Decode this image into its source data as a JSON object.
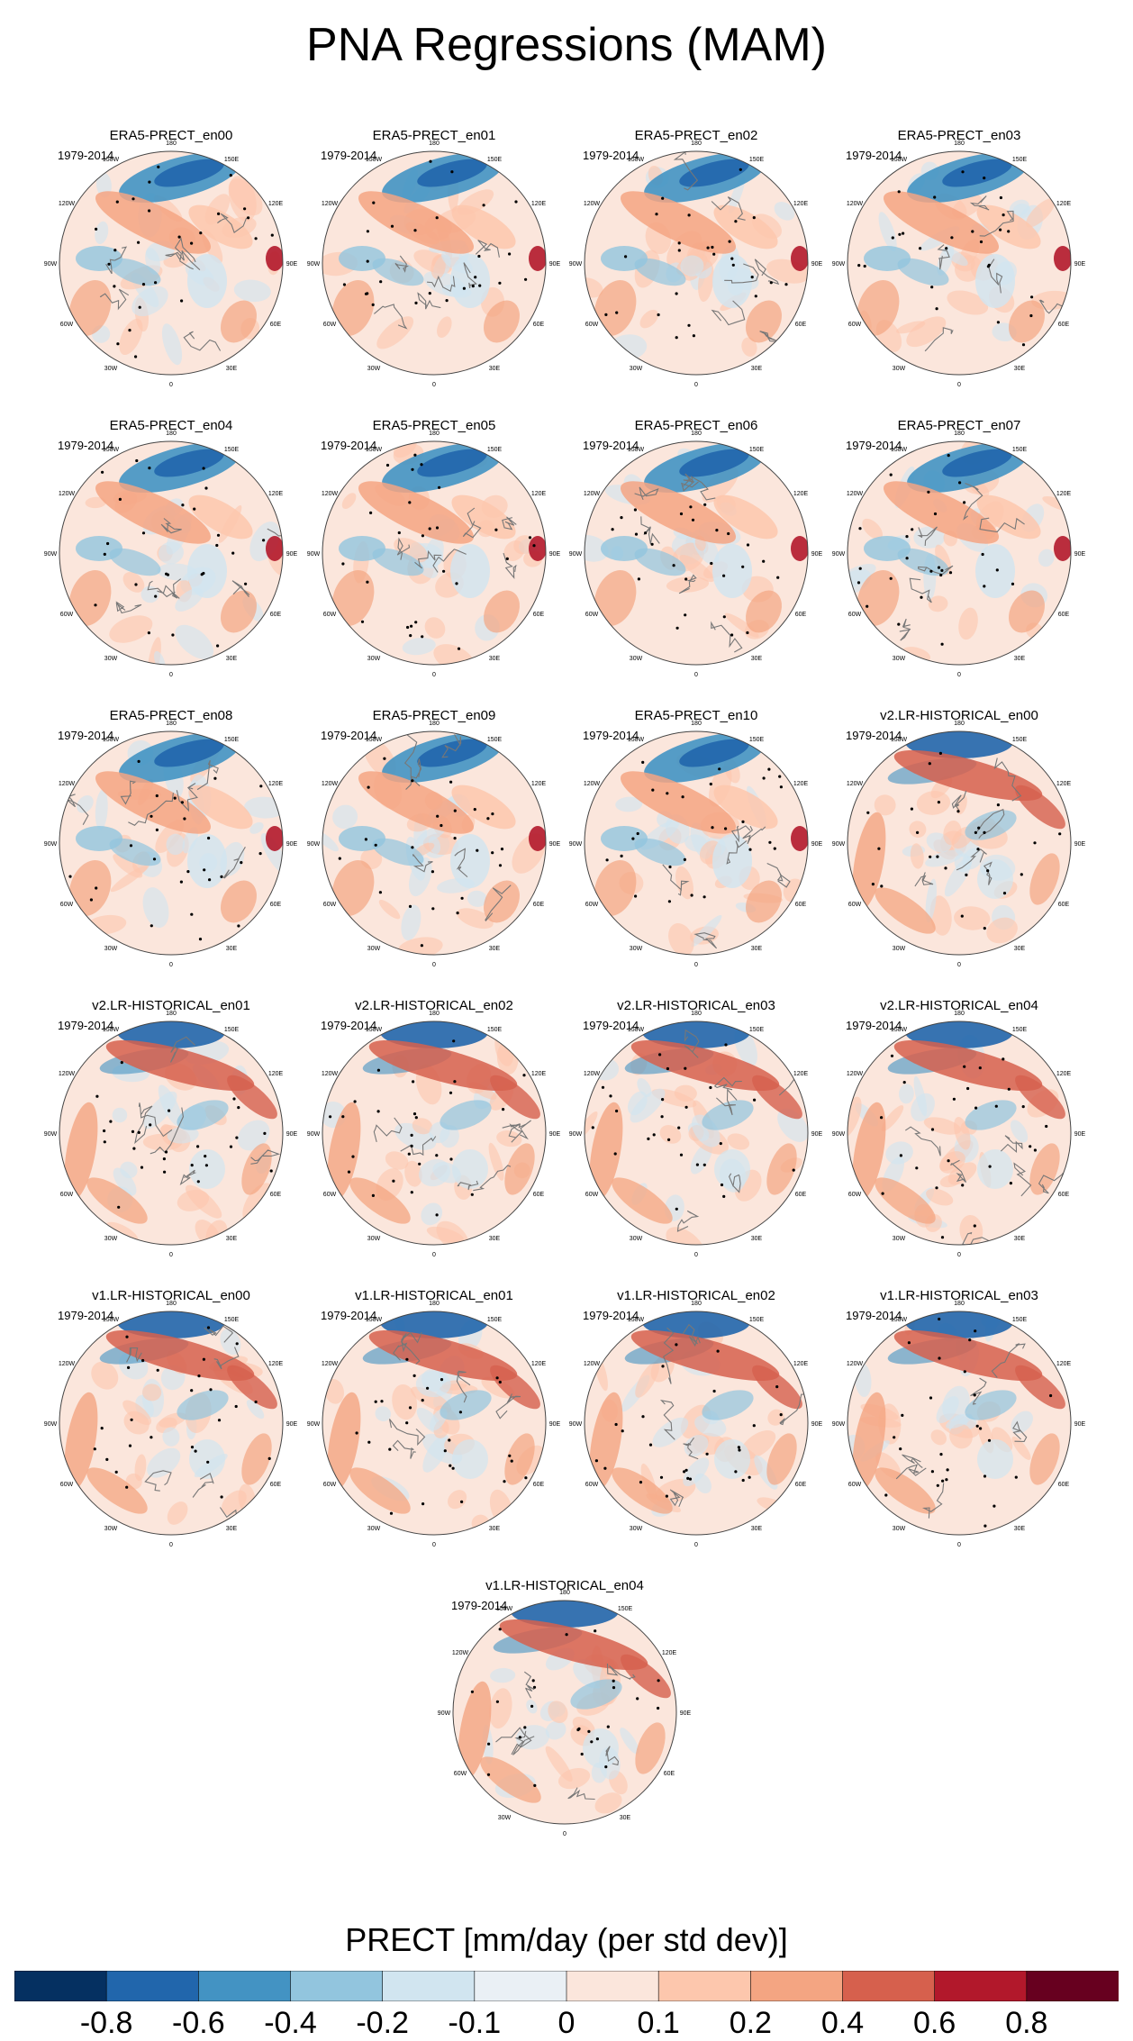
{
  "title": "PNA Regressions (MAM)",
  "chart_data": {
    "type": "heatmap",
    "projection": "north-polar-stereographic",
    "period": "1979-2014",
    "lon_labels": [
      "180",
      "150E",
      "120E",
      "90E",
      "60E",
      "30E",
      "0",
      "30W",
      "60W",
      "90W",
      "120W",
      "150W"
    ],
    "panels": [
      {
        "name": "ERA5-PRECT_en00"
      },
      {
        "name": "ERA5-PRECT_en01"
      },
      {
        "name": "ERA5-PRECT_en02"
      },
      {
        "name": "ERA5-PRECT_en03"
      },
      {
        "name": "ERA5-PRECT_en04"
      },
      {
        "name": "ERA5-PRECT_en05"
      },
      {
        "name": "ERA5-PRECT_en06"
      },
      {
        "name": "ERA5-PRECT_en07"
      },
      {
        "name": "ERA5-PRECT_en08"
      },
      {
        "name": "ERA5-PRECT_en09"
      },
      {
        "name": "ERA5-PRECT_en10"
      },
      {
        "name": "v2.LR-HISTORICAL_en00"
      },
      {
        "name": "v2.LR-HISTORICAL_en01"
      },
      {
        "name": "v2.LR-HISTORICAL_en02"
      },
      {
        "name": "v2.LR-HISTORICAL_en03"
      },
      {
        "name": "v2.LR-HISTORICAL_en04"
      },
      {
        "name": "v1.LR-HISTORICAL_en00"
      },
      {
        "name": "v1.LR-HISTORICAL_en01"
      },
      {
        "name": "v1.LR-HISTORICAL_en02"
      },
      {
        "name": "v1.LR-HISTORICAL_en03"
      },
      {
        "name": "v1.LR-HISTORICAL_en04"
      }
    ],
    "colorbar": {
      "title": "PRECT [mm/day (per std dev)]",
      "levels": [
        "-0.8",
        "-0.6",
        "-0.4",
        "-0.2",
        "-0.1",
        "0",
        "0.1",
        "0.2",
        "0.4",
        "0.6",
        "0.8"
      ],
      "colors": [
        "#053061",
        "#2166ac",
        "#4393c3",
        "#92c5de",
        "#d1e5f0",
        "#eaf0f5",
        "#fbe6dc",
        "#fdc7ad",
        "#f4a582",
        "#d6604d",
        "#b2182b",
        "#67001f"
      ]
    }
  }
}
